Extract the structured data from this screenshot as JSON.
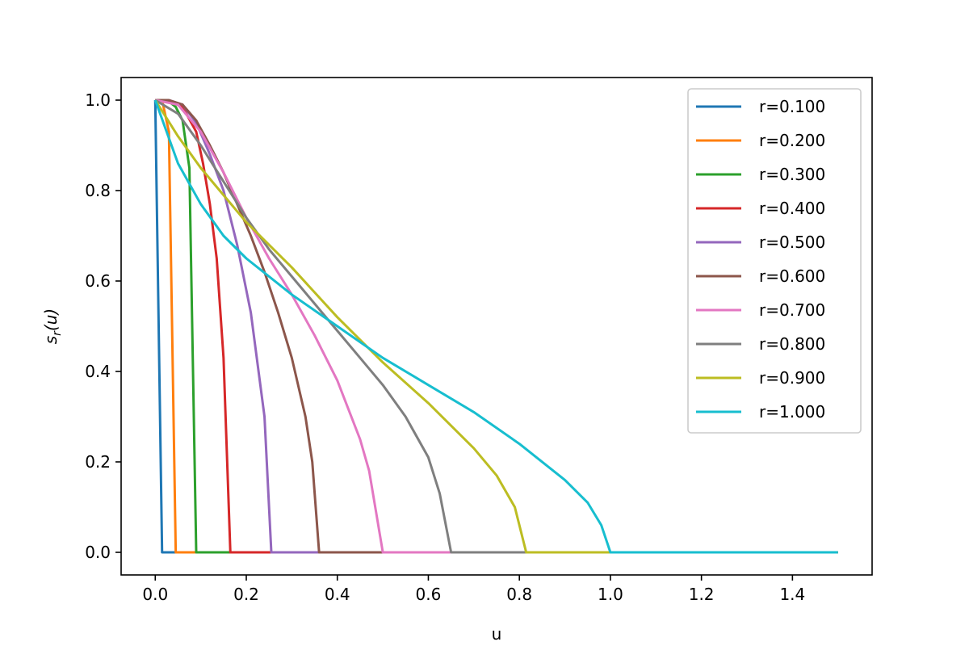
{
  "chart_data": {
    "type": "line",
    "title": "",
    "xlabel": "u",
    "ylabel_main": "s",
    "ylabel_sub": "r",
    "ylabel_arg": "(u)",
    "xlim": [
      -0.075,
      1.575
    ],
    "ylim": [
      -0.05,
      1.05
    ],
    "x_ticks": [
      0.0,
      0.2,
      0.4,
      0.6,
      0.8,
      1.0,
      1.2,
      1.4
    ],
    "x_tick_labels": [
      "0.0",
      "0.2",
      "0.4",
      "0.6",
      "0.8",
      "1.0",
      "1.2",
      "1.4"
    ],
    "y_ticks": [
      0.0,
      0.2,
      0.4,
      0.6,
      0.8,
      1.0
    ],
    "y_tick_labels": [
      "0.0",
      "0.2",
      "0.4",
      "0.6",
      "0.8",
      "1.0"
    ],
    "grid": false,
    "legend_position": "top-right",
    "series": [
      {
        "name": "r=0.100",
        "color": "#1f77b4",
        "x": [
          0.0,
          0.015,
          1.5
        ],
        "y": [
          1.0,
          0.0,
          0.0
        ]
      },
      {
        "name": "r=0.200",
        "color": "#ff7f0e",
        "x": [
          0.0,
          0.015,
          0.03,
          0.045,
          1.5
        ],
        "y": [
          1.0,
          1.0,
          0.93,
          0.0,
          0.0
        ]
      },
      {
        "name": "r=0.300",
        "color": "#2ca02c",
        "x": [
          0.0,
          0.015,
          0.03,
          0.045,
          0.06,
          0.075,
          0.09,
          1.5
        ],
        "y": [
          1.0,
          1.0,
          0.997,
          0.985,
          0.955,
          0.85,
          0.0,
          0.0
        ]
      },
      {
        "name": "r=0.400",
        "color": "#d62728",
        "x": [
          0.0,
          0.03,
          0.06,
          0.09,
          0.105,
          0.12,
          0.135,
          0.15,
          0.165,
          1.5
        ],
        "y": [
          1.0,
          0.998,
          0.985,
          0.93,
          0.86,
          0.77,
          0.65,
          0.43,
          0.0,
          0.0
        ]
      },
      {
        "name": "r=0.500",
        "color": "#9467bd",
        "x": [
          0.0,
          0.03,
          0.06,
          0.09,
          0.12,
          0.15,
          0.18,
          0.21,
          0.24,
          0.255,
          1.5
        ],
        "y": [
          1.0,
          1.0,
          0.99,
          0.95,
          0.88,
          0.8,
          0.68,
          0.53,
          0.3,
          0.0,
          0.0
        ]
      },
      {
        "name": "r=0.600",
        "color": "#8c564b",
        "x": [
          0.0,
          0.03,
          0.06,
          0.09,
          0.12,
          0.15,
          0.18,
          0.21,
          0.24,
          0.27,
          0.3,
          0.33,
          0.345,
          0.36,
          1.5
        ],
        "y": [
          1.0,
          1.0,
          0.99,
          0.955,
          0.9,
          0.84,
          0.77,
          0.7,
          0.62,
          0.53,
          0.43,
          0.3,
          0.2,
          0.0,
          0.0
        ]
      },
      {
        "name": "r=0.700",
        "color": "#e377c2",
        "x": [
          0.0,
          0.05,
          0.1,
          0.15,
          0.2,
          0.25,
          0.3,
          0.35,
          0.4,
          0.45,
          0.47,
          0.5,
          1.5
        ],
        "y": [
          1.0,
          0.99,
          0.93,
          0.84,
          0.74,
          0.65,
          0.57,
          0.48,
          0.38,
          0.25,
          0.18,
          0.0,
          0.0
        ]
      },
      {
        "name": "r=0.800",
        "color": "#7f7f7f",
        "x": [
          0.0,
          0.05,
          0.1,
          0.15,
          0.2,
          0.25,
          0.3,
          0.35,
          0.4,
          0.45,
          0.5,
          0.55,
          0.6,
          0.625,
          0.65,
          1.5
        ],
        "y": [
          1.0,
          0.97,
          0.9,
          0.82,
          0.74,
          0.67,
          0.61,
          0.55,
          0.49,
          0.43,
          0.37,
          0.3,
          0.21,
          0.13,
          0.0,
          0.0
        ]
      },
      {
        "name": "r=0.900",
        "color": "#bcbd22",
        "x": [
          0.0,
          0.05,
          0.1,
          0.15,
          0.2,
          0.3,
          0.4,
          0.5,
          0.6,
          0.7,
          0.75,
          0.79,
          0.815,
          1.5
        ],
        "y": [
          1.0,
          0.92,
          0.85,
          0.79,
          0.73,
          0.63,
          0.52,
          0.42,
          0.33,
          0.23,
          0.17,
          0.1,
          0.0,
          0.0
        ]
      },
      {
        "name": "r=1.000",
        "color": "#17becf",
        "x": [
          0.0,
          0.05,
          0.1,
          0.15,
          0.2,
          0.3,
          0.4,
          0.5,
          0.6,
          0.7,
          0.8,
          0.9,
          0.95,
          0.98,
          1.0,
          1.5
        ],
        "y": [
          1.0,
          0.86,
          0.77,
          0.7,
          0.65,
          0.57,
          0.5,
          0.43,
          0.37,
          0.31,
          0.24,
          0.16,
          0.11,
          0.06,
          0.0,
          0.0
        ]
      }
    ]
  }
}
